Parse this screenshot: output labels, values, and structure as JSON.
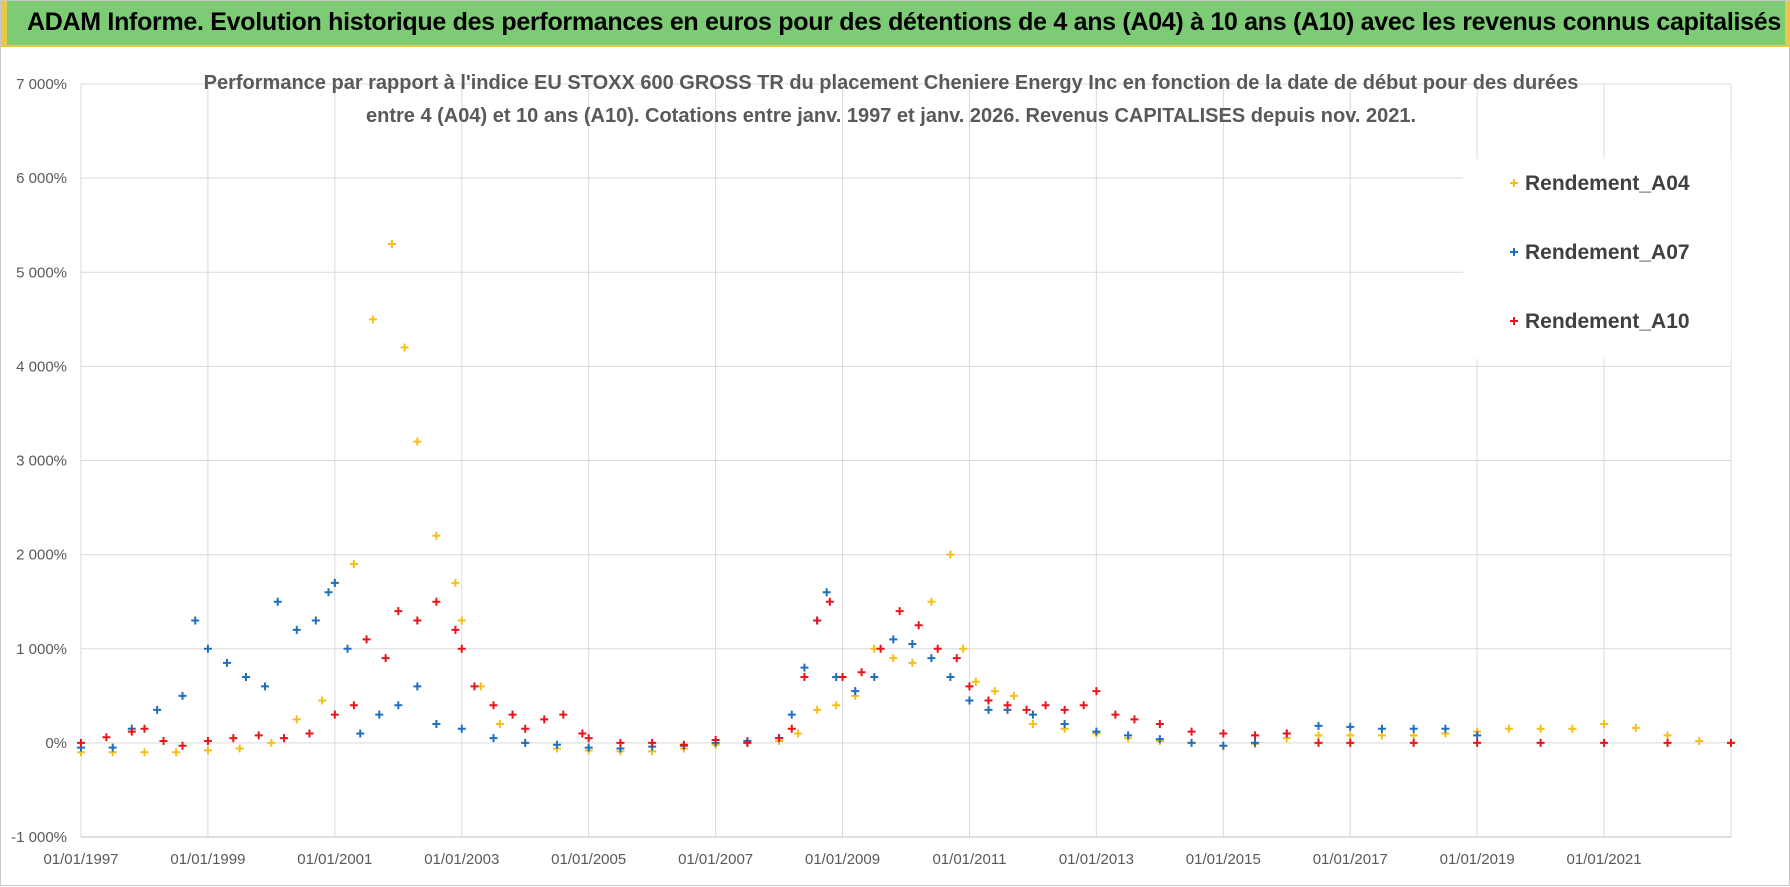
{
  "banner": {
    "title": "ADAM Informe. Evolution historique des performances en euros pour des détentions de 4 ans (A04) à 10 ans (A10) avec les revenus connus capitalisés",
    "background": "#7ecb76",
    "accent": "#e6c84a"
  },
  "chart_data": {
    "type": "scatter",
    "title_lines": [
      "Performance par rapport à l'indice EU STOXX 600 GROSS TR  du placement Cheniere Energy Inc en fonction de la date de début pour des durées",
      "entre 4 (A04) et 10 ans (A10). Cotations entre janv. 1997 et janv. 2026. Revenus CAPITALISES depuis nov. 2021."
    ],
    "marker": "+",
    "grid": true,
    "legend_position": "right",
    "xlim": [
      "01/01/1997",
      "01/01/2023"
    ],
    "ylim": [
      -1000,
      7000
    ],
    "x_tick_labels": [
      "01/01/1997",
      "01/01/1999",
      "01/01/2001",
      "01/01/2003",
      "01/01/2005",
      "01/01/2007",
      "01/01/2009",
      "01/01/2011",
      "01/01/2013",
      "01/01/2015",
      "01/01/2017",
      "01/01/2019",
      "01/01/2021"
    ],
    "y_ticks": [
      -1000,
      0,
      1000,
      2000,
      3000,
      4000,
      5000,
      6000,
      7000
    ],
    "y_tick_labels": [
      "-1 000%",
      "0%",
      "1 000%",
      "2 000%",
      "3 000%",
      "4 000%",
      "5 000%",
      "6 000%",
      "7 000%"
    ],
    "series": [
      {
        "name": "Rendement_A04",
        "color": "#f5c016",
        "x": [
          1997.0,
          1997.5,
          1998.0,
          1998.5,
          1999.0,
          1999.5,
          2000.0,
          2000.4,
          2000.8,
          2001.0,
          2001.3,
          2001.6,
          2001.9,
          2002.1,
          2002.3,
          2002.6,
          2002.9,
          2003.0,
          2003.3,
          2003.6,
          2004.0,
          2004.5,
          2005.0,
          2005.5,
          2006.0,
          2006.5,
          2007.0,
          2007.5,
          2008.0,
          2008.3,
          2008.6,
          2008.9,
          2009.2,
          2009.5,
          2009.8,
          2010.1,
          2010.4,
          2010.7,
          2010.9,
          2011.1,
          2011.4,
          2011.7,
          2012.0,
          2012.5,
          2013.0,
          2013.5,
          2014.0,
          2014.5,
          2015.0,
          2015.5,
          2016.0,
          2016.5,
          2017.0,
          2017.5,
          2018.0,
          2018.5,
          2019.0,
          2019.5,
          2020.0,
          2020.5,
          2021.0,
          2021.5,
          2022.0,
          2022.5,
          2023.0
        ],
        "y": [
          -100,
          -100,
          -100,
          -100,
          -80,
          -60,
          0,
          250,
          450,
          1700,
          1900,
          4500,
          5300,
          4200,
          3200,
          2200,
          1700,
          1300,
          600,
          200,
          0,
          -60,
          -80,
          -90,
          -90,
          -60,
          -20,
          0,
          20,
          100,
          350,
          400,
          500,
          1000,
          900,
          850,
          1500,
          2000,
          1000,
          650,
          550,
          500,
          200,
          150,
          100,
          50,
          20,
          0,
          -30,
          -10,
          50,
          80,
          80,
          80,
          80,
          100,
          120,
          150,
          150,
          150,
          200,
          160,
          80,
          20,
          0
        ]
      },
      {
        "name": "Rendement_A07",
        "color": "#1f6fbf",
        "x": [
          1997.0,
          1997.5,
          1997.8,
          1998.2,
          1998.6,
          1998.8,
          1999.0,
          1999.3,
          1999.6,
          1999.9,
          2000.1,
          2000.4,
          2000.7,
          2000.9,
          2001.0,
          2001.2,
          2001.4,
          2001.7,
          2002.0,
          2002.3,
          2002.6,
          2003.0,
          2003.5,
          2004.0,
          2004.5,
          2005.0,
          2005.5,
          2006.0,
          2006.5,
          2007.0,
          2007.5,
          2008.0,
          2008.2,
          2008.4,
          2008.6,
          2008.75,
          2008.9,
          2009.2,
          2009.5,
          2009.8,
          2010.1,
          2010.4,
          2010.7,
          2011.0,
          2011.3,
          2011.6,
          2012.0,
          2012.5,
          2013.0,
          2013.5,
          2014.0,
          2014.5,
          2015.0,
          2015.5,
          2016.0,
          2016.5,
          2017.0,
          2017.5,
          2018.0,
          2018.5,
          2019.0
        ],
        "y": [
          -50,
          -50,
          150,
          350,
          500,
          1300,
          1000,
          850,
          700,
          600,
          1500,
          1200,
          1300,
          1600,
          1700,
          1000,
          100,
          300,
          400,
          600,
          200,
          150,
          50,
          0,
          -20,
          -50,
          -60,
          -40,
          -30,
          0,
          20,
          50,
          300,
          800,
          1300,
          1600,
          700,
          550,
          700,
          1100,
          1050,
          900,
          700,
          450,
          350,
          350,
          300,
          200,
          120,
          80,
          40,
          0,
          -30,
          0,
          100,
          180,
          170,
          150,
          150,
          150,
          80
        ]
      },
      {
        "name": "Rendement_A10",
        "color": "#e8141c",
        "x": [
          1997.0,
          1997.4,
          1997.8,
          1998.0,
          1998.3,
          1998.6,
          1999.0,
          1999.4,
          1999.8,
          2000.2,
          2000.6,
          2001.0,
          2001.3,
          2001.5,
          2001.8,
          2002.0,
          2002.3,
          2002.6,
          2002.9,
          2003.0,
          2003.2,
          2003.5,
          2003.8,
          2004.0,
          2004.3,
          2004.6,
          2004.9,
          2005.0,
          2005.5,
          2006.0,
          2006.5,
          2007.0,
          2007.5,
          2008.0,
          2008.2,
          2008.4,
          2008.6,
          2008.8,
          2009.0,
          2009.3,
          2009.6,
          2009.9,
          2010.2,
          2010.5,
          2010.8,
          2011.0,
          2011.3,
          2011.6,
          2011.9,
          2012.2,
          2012.5,
          2012.8,
          2013.0,
          2013.3,
          2013.6,
          2014.0,
          2014.5,
          2015.0,
          2015.5,
          2016.0,
          2016.5,
          2017.0,
          2018.0,
          2019.0,
          2020.0,
          2021.0,
          2022.0,
          2023.0
        ],
        "y": [
          0,
          60,
          120,
          150,
          20,
          -30,
          20,
          50,
          80,
          50,
          100,
          300,
          400,
          1100,
          900,
          1400,
          1300,
          1500,
          1200,
          1000,
          600,
          400,
          300,
          150,
          250,
          300,
          100,
          50,
          0,
          0,
          -20,
          30,
          0,
          50,
          150,
          700,
          1300,
          1500,
          700,
          750,
          1000,
          1400,
          1250,
          1000,
          900,
          600,
          450,
          400,
          350,
          400,
          350,
          400,
          550,
          300,
          250,
          200,
          120,
          100,
          80,
          100,
          0,
          0,
          0,
          0,
          0,
          0,
          0,
          0
        ]
      }
    ]
  }
}
